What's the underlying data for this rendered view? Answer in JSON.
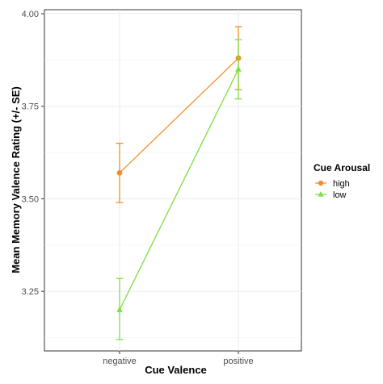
{
  "chart_data": {
    "type": "line",
    "title": "",
    "xlabel": "Cue Valence",
    "ylabel": "Mean Memory Valence Rating (+/- SE)",
    "categories": [
      "negative",
      "positive"
    ],
    "ylim": [
      3.1,
      4.0
    ],
    "yticks": [
      3.25,
      3.5,
      3.75,
      4.0
    ],
    "ytick_labels": [
      "3.25",
      "3.50",
      "3.75",
      "4.00"
    ],
    "grid": true,
    "legend": {
      "title": "Cue Arousal",
      "position": "right"
    },
    "series": [
      {
        "name": "high",
        "color": "#f28e2b",
        "marker": "circle",
        "values": [
          3.57,
          3.88
        ],
        "se_lower": [
          3.49,
          3.795
        ],
        "se_upper": [
          3.65,
          3.965
        ]
      },
      {
        "name": "low",
        "color": "#7be043",
        "marker": "triangle",
        "values": [
          3.2,
          3.85
        ],
        "se_lower": [
          3.12,
          3.77
        ],
        "se_upper": [
          3.285,
          3.93
        ]
      }
    ]
  }
}
